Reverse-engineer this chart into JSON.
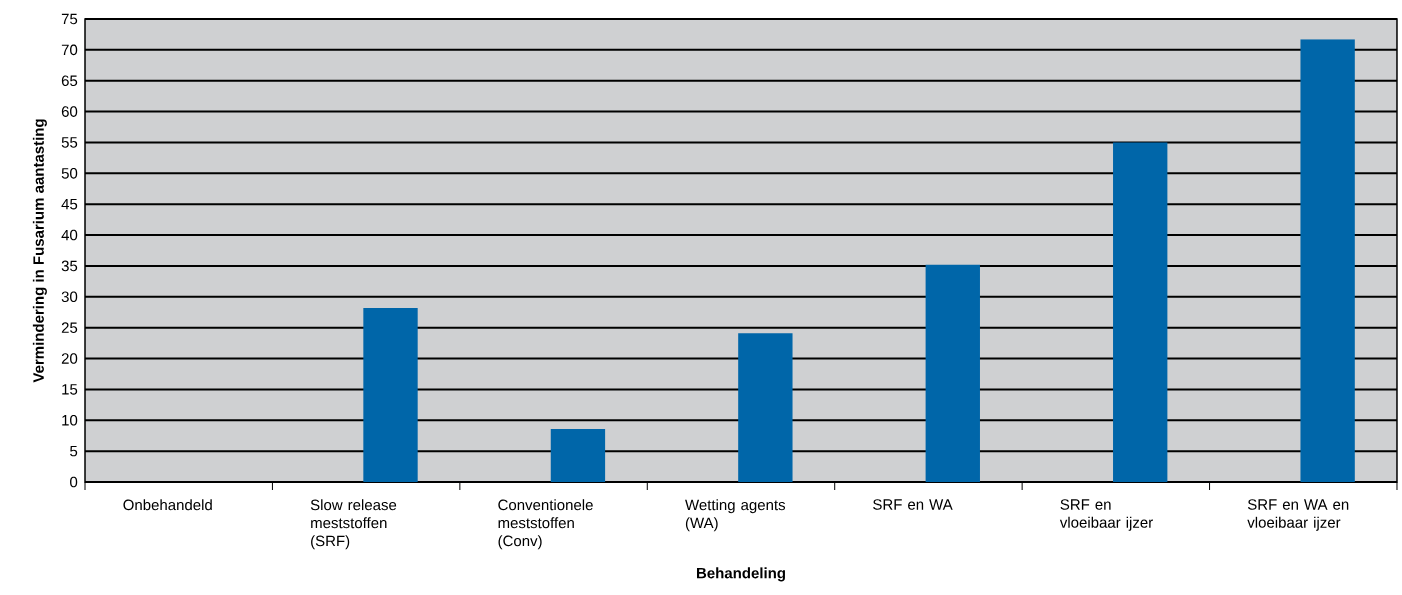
{
  "chart_data": {
    "type": "bar",
    "xlabel": "Behandeling",
    "ylabel": "Vermindering in Fusarium aantasting",
    "categories": [
      "Onbehandeld",
      "Slow release meststoffen (SRF)",
      "Conventionele meststoffen (Conv)",
      "Wetting agents (WA)",
      "SRF en WA",
      "SRF en vloeibaar ijzer",
      "SRF en WA en vloeibaar ijzer"
    ],
    "values": [
      0,
      28.2,
      8.6,
      24.1,
      35.2,
      55,
      71.7
    ],
    "color": "#0066a9",
    "ylim": [
      0,
      75
    ],
    "yticks": [
      0,
      5,
      10,
      15,
      20,
      25,
      30,
      35,
      40,
      45,
      50,
      55,
      60,
      65,
      70,
      75
    ],
    "grid": "y"
  }
}
